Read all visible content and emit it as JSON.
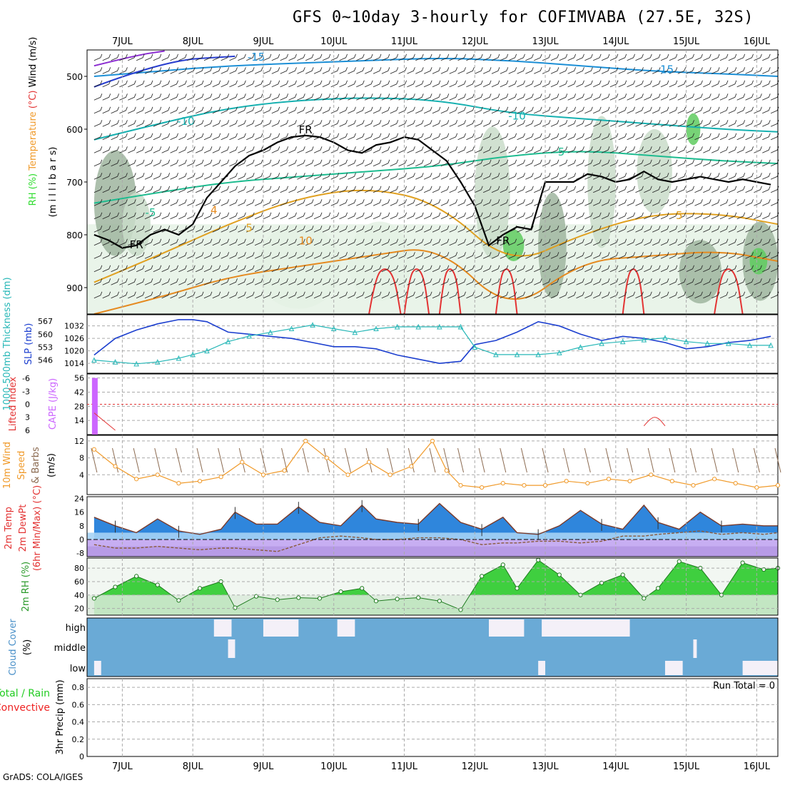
{
  "title": "GFS 0~10day 3-hourly for COFIMVABA (27.5E, 32S)",
  "footer": "GrADS: COLA/IGES",
  "colors": {
    "rh_light": "#e4f1e4",
    "rh_mid": "#c9dcc9",
    "rh_dark": "#9fb59f",
    "rh_green": "#5fcb5f",
    "rh_bright": "#2fdc2f",
    "freezing": "#000000",
    "slp": "#1c3fcf",
    "thickness": "#27b7b7",
    "cape": "#cc66ff",
    "lifted": "#e33333",
    "wind": "#f09a2a",
    "barb": "#8b6a50",
    "temp_warm": "#2e7d32",
    "dewpt": "#8a5a3c",
    "cloud": "#6aaad6",
    "cloud_gap": "#f4f0f8",
    "precip_total": "#22cc22",
    "precip_conv": "#ee2222",
    "grid": "#aaaaaa"
  },
  "chart_data": [
    {
      "type": "heatmap",
      "panel": "upper-air",
      "ylabel_parts": [
        {
          "text": "RH (%)",
          "color": "#2fdc2f"
        },
        {
          "text": "Temperature",
          "color": "#f09a2a"
        },
        {
          "text": "(°C)",
          "color": "#e33333"
        },
        {
          "text": "Wind (m/s)",
          "color": "#000000"
        }
      ],
      "ylabel2": "(m i l l i b a r s)",
      "y_ticks": [
        500,
        600,
        700,
        800,
        900
      ],
      "ylim": [
        450,
        950
      ],
      "x_ticks": [
        "7JUL",
        "8JUL",
        "9JUL",
        "10JUL",
        "11JUL",
        "12JUL",
        "13JUL",
        "14JUL",
        "15JUL",
        "16JUL"
      ],
      "xlim_days": [
        6.5,
        16.3
      ],
      "freezing_level": {
        "label": "FR",
        "x": [
          6.6,
          6.8,
          7.0,
          7.2,
          7.4,
          7.6,
          7.8,
          8.0,
          8.2,
          8.4,
          8.6,
          8.8,
          9.0,
          9.2,
          9.4,
          9.6,
          9.8,
          10.0,
          10.2,
          10.4,
          10.6,
          10.8,
          11.0,
          11.2,
          11.4,
          11.6,
          11.8,
          12.0,
          12.2,
          12.4,
          12.6,
          12.8,
          13.0,
          13.2,
          13.4,
          13.6,
          13.8,
          14.0,
          14.2,
          14.4,
          14.6,
          14.8,
          15.0,
          15.2,
          15.4,
          15.6,
          15.8,
          16.0,
          16.2
        ],
        "p": [
          800,
          810,
          825,
          820,
          800,
          790,
          800,
          780,
          730,
          700,
          670,
          650,
          640,
          625,
          615,
          612,
          615,
          625,
          640,
          645,
          630,
          625,
          615,
          620,
          640,
          660,
          700,
          745,
          820,
          800,
          785,
          790,
          700,
          700,
          700,
          685,
          690,
          700,
          695,
          680,
          695,
          700,
          695,
          690,
          695,
          700,
          695,
          700,
          705
        ]
      },
      "isotherms": [
        {
          "value": -15,
          "x": [
            6.6,
            7.5,
            8.5,
            9.5,
            10.5,
            11.5,
            12.5,
            13.5,
            14.5,
            15.5,
            16.3
          ],
          "p": [
            500,
            490,
            480,
            475,
            470,
            465,
            470,
            480,
            490,
            495,
            500
          ]
        },
        {
          "value": -10,
          "x": [
            6.6,
            7.5,
            8.5,
            9.5,
            10.5,
            11.5,
            12.5,
            13.5,
            14.5,
            15.5,
            16.3
          ],
          "p": [
            620,
            590,
            560,
            545,
            540,
            545,
            570,
            580,
            590,
            600,
            605
          ]
        },
        {
          "value": -5,
          "x": [
            6.6,
            7.5,
            8.5,
            9.5,
            10.5,
            11.5,
            12.5,
            13.5,
            14.5,
            15.5,
            16.3
          ],
          "p": [
            740,
            720,
            700,
            690,
            680,
            670,
            650,
            640,
            650,
            660,
            665
          ]
        },
        {
          "value": 5,
          "x": [
            6.6,
            7.5,
            8.5,
            9.5,
            10.5,
            11.5,
            12.5,
            13.5,
            14.5,
            15.5,
            16.3
          ],
          "p": [
            890,
            840,
            780,
            730,
            710,
            740,
            860,
            800,
            760,
            760,
            780
          ]
        },
        {
          "value": 10,
          "x": [
            6.6,
            7.5,
            8.5,
            9.5,
            10.5,
            11.5,
            12.5,
            13.5,
            14.5,
            15.5,
            16.3
          ],
          "p": [
            950,
            920,
            880,
            860,
            840,
            820,
            950,
            850,
            840,
            830,
            850
          ]
        }
      ],
      "contour_labels": [
        "-15",
        "-15",
        "-10",
        "-10",
        "-5",
        "-5",
        "5",
        "5",
        "10",
        "FR",
        "FR",
        "FR",
        "4"
      ],
      "rh_patches": [
        {
          "x": 6.6,
          "p": 740,
          "w": 0.6,
          "h": 200,
          "level": 3
        },
        {
          "x": 7.0,
          "p": 780,
          "w": 0.4,
          "h": 120,
          "level": 2
        },
        {
          "x": 8.9,
          "p": 860,
          "w": 1.2,
          "h": 160,
          "level": 1
        },
        {
          "x": 10.2,
          "p": 850,
          "w": 0.9,
          "h": 150,
          "level": 1
        },
        {
          "x": 12.0,
          "p": 720,
          "w": 0.5,
          "h": 250,
          "level": 2
        },
        {
          "x": 12.4,
          "p": 820,
          "w": 0.3,
          "h": 60,
          "level": 4
        },
        {
          "x": 12.9,
          "p": 820,
          "w": 0.4,
          "h": 200,
          "level": 3
        },
        {
          "x": 13.6,
          "p": 700,
          "w": 0.4,
          "h": 250,
          "level": 2
        },
        {
          "x": 14.3,
          "p": 680,
          "w": 0.5,
          "h": 160,
          "level": 2
        },
        {
          "x": 15.0,
          "p": 600,
          "w": 0.2,
          "h": 60,
          "level": 4
        },
        {
          "x": 14.9,
          "p": 870,
          "w": 0.6,
          "h": 120,
          "level": 3
        },
        {
          "x": 15.8,
          "p": 850,
          "w": 0.5,
          "h": 150,
          "level": 3
        },
        {
          "x": 15.9,
          "p": 850,
          "w": 0.25,
          "h": 50,
          "level": 4
        }
      ]
    },
    {
      "type": "line",
      "panel": "slp-thickness",
      "ylabel_left": "1000-500mb Thickness (dm)",
      "ylabel_right": "SLP (mb)",
      "thickness_ticks": [
        546,
        553,
        560,
        567
      ],
      "slp_ticks": [
        1014,
        1020,
        1026,
        1032
      ],
      "x": [
        6.6,
        6.9,
        7.2,
        7.5,
        7.8,
        8.0,
        8.2,
        8.5,
        8.8,
        9.1,
        9.4,
        9.7,
        10.0,
        10.3,
        10.6,
        10.9,
        11.2,
        11.5,
        11.8,
        12.0,
        12.3,
        12.6,
        12.9,
        13.2,
        13.5,
        13.8,
        14.1,
        14.4,
        14.7,
        15.0,
        15.3,
        15.6,
        15.9,
        16.2
      ],
      "series": [
        {
          "name": "SLP (mb)",
          "values": [
            1018,
            1026,
            1030,
            1033,
            1035,
            1035,
            1034,
            1029,
            1028,
            1027,
            1026,
            1024,
            1022,
            1022,
            1021,
            1018,
            1016,
            1014,
            1015,
            1023,
            1025,
            1029,
            1034,
            1032,
            1028,
            1025,
            1027,
            1026,
            1024,
            1021,
            1022,
            1024,
            1025,
            1027
          ]
        },
        {
          "name": "Thickness (dm)",
          "values": [
            546,
            545,
            544,
            545,
            547,
            549,
            551,
            556,
            559,
            561,
            563,
            565,
            563,
            561,
            563,
            564,
            564,
            564,
            564,
            553,
            549,
            549,
            549,
            550,
            553,
            555,
            556,
            557,
            558,
            556,
            555,
            555,
            554,
            554
          ]
        }
      ]
    },
    {
      "type": "bar",
      "panel": "cape-lifted",
      "ylabel_left": "Lifted Index",
      "ylabel_right": "CAPE (J/kg)",
      "li_ticks": [
        "-6",
        "-3",
        "0",
        "3",
        "6"
      ],
      "cape_ticks": [
        14,
        28,
        42,
        56
      ],
      "cape": {
        "x": [
          6.6
        ],
        "values": [
          56
        ]
      },
      "lifted_index": {
        "x": [
          6.6,
          6.75,
          6.9,
          14.4,
          14.5,
          14.6,
          14.7
        ],
        "values": [
          2,
          4,
          6,
          5,
          3,
          3,
          5
        ]
      }
    },
    {
      "type": "line",
      "panel": "wind",
      "ylabel_parts": [
        {
          "text": "10m Wind",
          "color": "#f09a2a"
        },
        {
          "text": "Speed",
          "color": "#f09a2a"
        },
        {
          "text": "& Barbs",
          "color": "#8b6a50"
        }
      ],
      "ylabel2": "(m/s)",
      "y_ticks": [
        4,
        8,
        12
      ],
      "ylim": [
        0,
        13
      ],
      "x": [
        6.6,
        6.9,
        7.2,
        7.5,
        7.8,
        8.1,
        8.4,
        8.7,
        9.0,
        9.3,
        9.6,
        9.9,
        10.2,
        10.5,
        10.8,
        11.1,
        11.4,
        11.6,
        11.8,
        12.1,
        12.4,
        12.7,
        13.0,
        13.3,
        13.6,
        13.9,
        14.2,
        14.5,
        14.8,
        15.1,
        15.4,
        15.7,
        16.0,
        16.3
      ],
      "values": [
        10,
        6,
        3,
        4,
        2,
        2.5,
        3.5,
        7,
        4,
        5,
        12,
        8,
        4,
        7,
        4,
        6,
        12,
        5,
        1.5,
        1,
        2,
        1.5,
        1.5,
        2.5,
        2,
        3,
        2.5,
        4,
        2.5,
        1.5,
        3,
        2,
        1,
        1.5
      ]
    },
    {
      "type": "area",
      "panel": "temperature",
      "ylabel_parts": [
        "2m Temp",
        "2m DewPt",
        "(6hr Min/Max) (°C)"
      ],
      "y_ticks": [
        -8,
        0,
        8,
        16,
        24
      ],
      "ylim": [
        -10,
        25
      ],
      "x": [
        6.6,
        6.9,
        7.2,
        7.5,
        7.8,
        8.1,
        8.4,
        8.6,
        8.9,
        9.2,
        9.5,
        9.8,
        10.1,
        10.4,
        10.6,
        10.9,
        11.2,
        11.5,
        11.8,
        12.1,
        12.4,
        12.6,
        12.9,
        13.2,
        13.5,
        13.8,
        14.1,
        14.4,
        14.6,
        14.9,
        15.2,
        15.5,
        15.8,
        16.1,
        16.3
      ],
      "series": [
        {
          "name": "2m Temp",
          "values": [
            13,
            8,
            4,
            12,
            5,
            3,
            6,
            16,
            9,
            9,
            19,
            10,
            8,
            20,
            12,
            10,
            9,
            21,
            10,
            6,
            13,
            4,
            3,
            8,
            17,
            9,
            6,
            20,
            10,
            6,
            16,
            8,
            9,
            8,
            8
          ]
        },
        {
          "name": "2m DewPt",
          "values": [
            -3,
            -5,
            -5,
            -4,
            -5,
            -6,
            -5,
            -5,
            -6,
            -7,
            -3,
            1,
            2,
            1,
            0,
            0,
            1,
            1,
            0,
            -3,
            -2,
            -2,
            -1,
            -1,
            -2,
            -1,
            2,
            2,
            3,
            4,
            5,
            3,
            4,
            3,
            4
          ]
        }
      ]
    },
    {
      "type": "area",
      "panel": "rh",
      "ylabel": "2m RH (%)",
      "y_ticks": [
        20,
        40,
        60,
        80
      ],
      "ylim": [
        10,
        95
      ],
      "x": [
        6.6,
        6.9,
        7.2,
        7.5,
        7.8,
        8.1,
        8.4,
        8.6,
        8.9,
        9.2,
        9.5,
        9.8,
        10.1,
        10.4,
        10.6,
        10.9,
        11.2,
        11.5,
        11.8,
        12.1,
        12.4,
        12.6,
        12.9,
        13.2,
        13.5,
        13.8,
        14.1,
        14.4,
        14.6,
        14.9,
        15.2,
        15.5,
        15.8,
        16.1,
        16.3
      ],
      "values": [
        35,
        52,
        68,
        55,
        32,
        50,
        60,
        21,
        38,
        33,
        36,
        35,
        45,
        50,
        31,
        34,
        36,
        31,
        18,
        68,
        85,
        50,
        92,
        70,
        40,
        58,
        70,
        35,
        50,
        90,
        80,
        40,
        88,
        78,
        80
      ]
    },
    {
      "type": "area",
      "panel": "cloud",
      "ylabel": "Cloud Cover (%)",
      "categories": [
        "high",
        "middle",
        "low"
      ],
      "high_gaps": [
        [
          8.3,
          8.55
        ],
        [
          9.0,
          9.5
        ],
        [
          10.05,
          10.3
        ],
        [
          12.2,
          12.7
        ],
        [
          12.95,
          14.2
        ]
      ],
      "middle_gaps": [
        [
          8.5,
          8.6
        ],
        [
          15.1,
          15.15
        ]
      ],
      "low_gaps": [
        [
          6.6,
          6.7
        ],
        [
          12.9,
          13.0
        ],
        [
          14.7,
          14.95
        ],
        [
          15.8,
          16.3
        ]
      ]
    },
    {
      "type": "bar",
      "panel": "precip",
      "ylabel_parts": [
        {
          "text": "Total / Rain",
          "color": "#22cc22"
        },
        {
          "text": "Convective",
          "color": "#ee2222"
        }
      ],
      "ylabel2": "3hr Precip (mm)",
      "y_ticks": [
        "0",
        "0.2",
        "0.4",
        "0.6",
        "0.8"
      ],
      "ylim": [
        0,
        0.9
      ],
      "annotation": "Run Total = 0",
      "values": []
    }
  ]
}
